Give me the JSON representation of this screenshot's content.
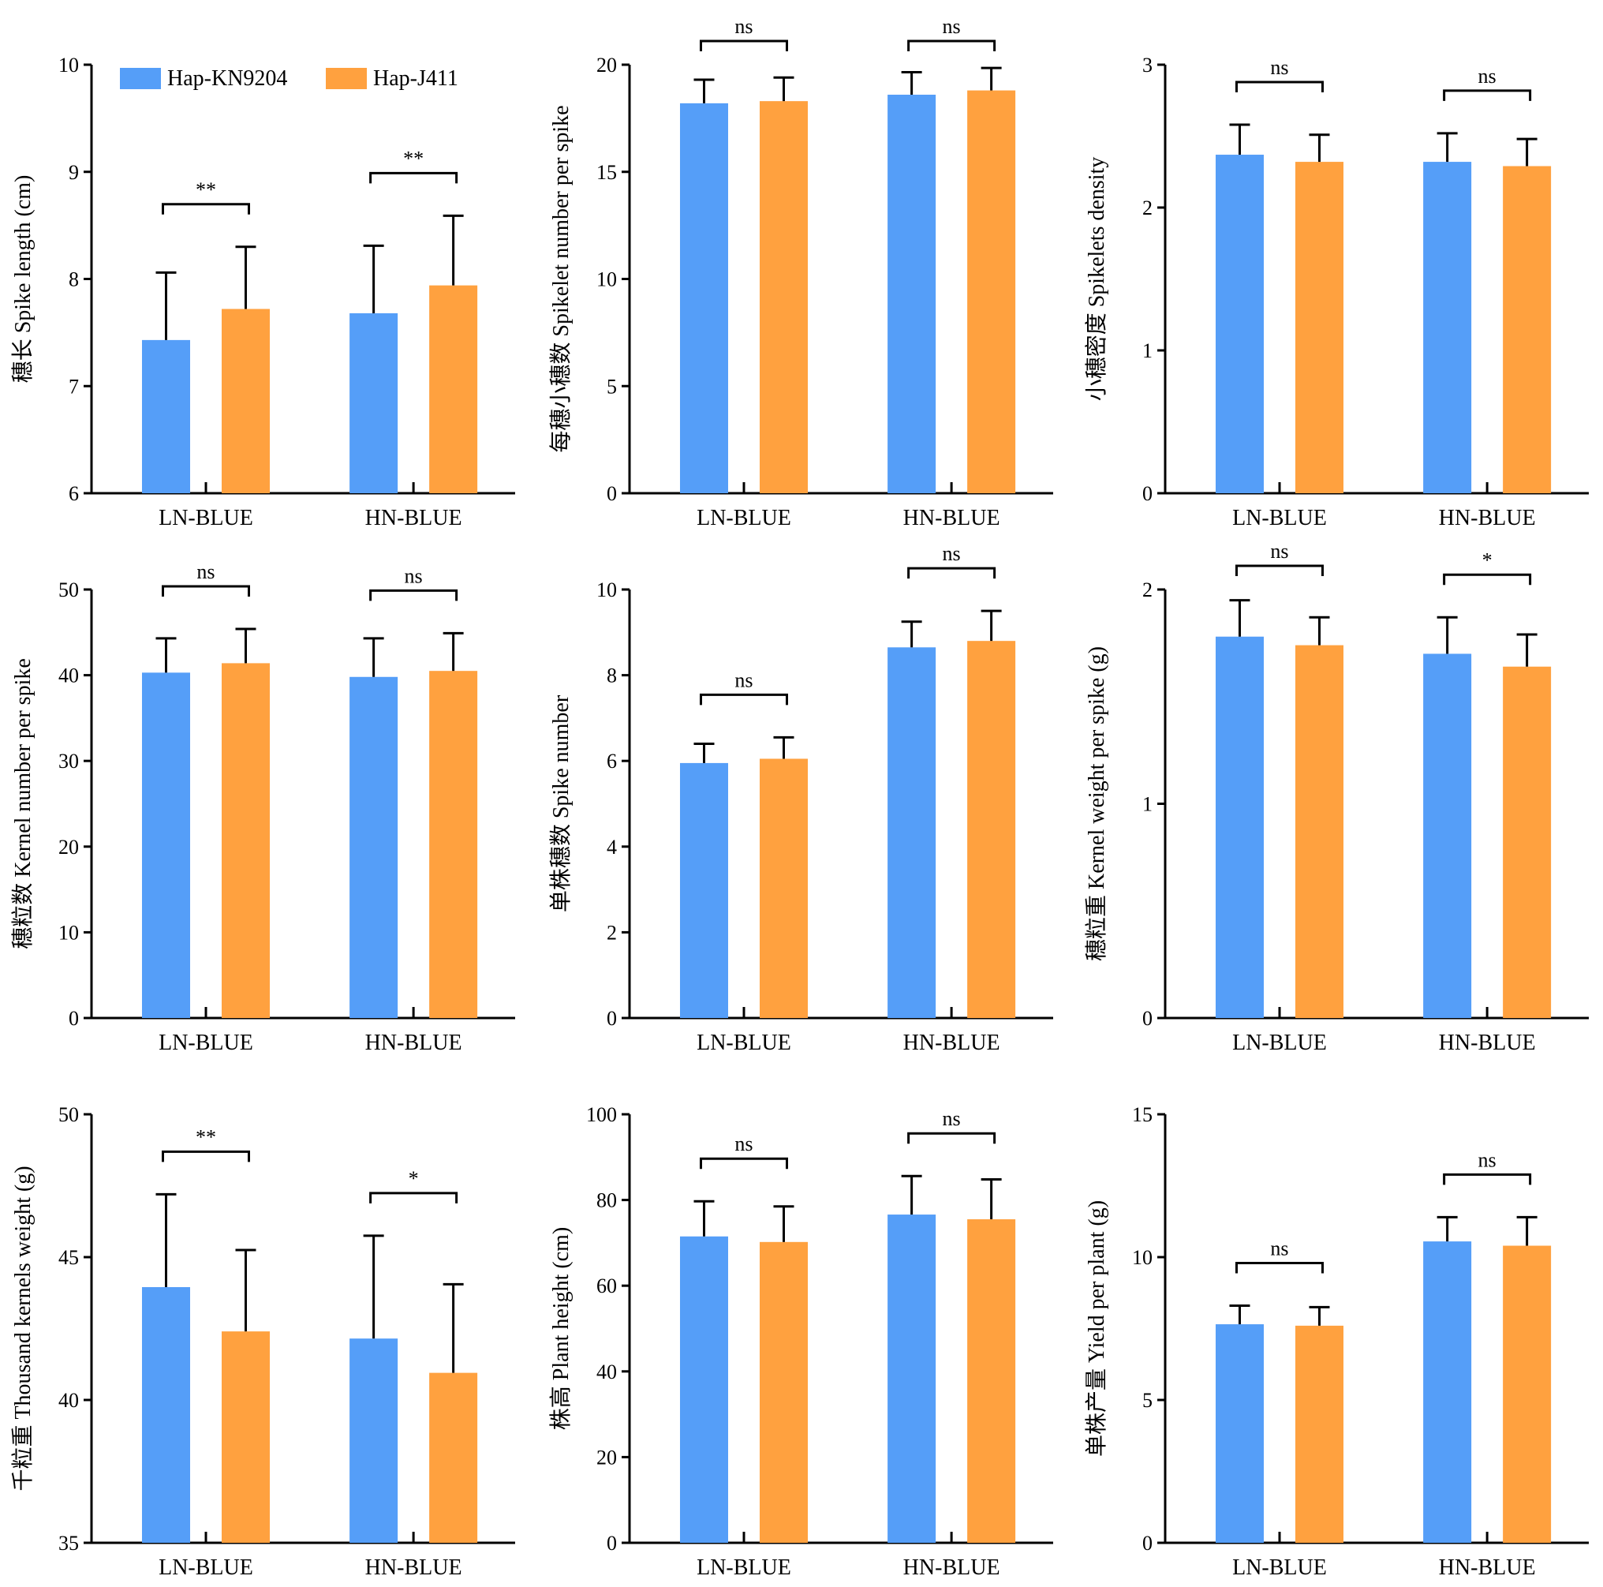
{
  "colors": {
    "series_1": "#559ef8",
    "series_2": "#ffa13f"
  },
  "legend": {
    "placement": "top-left of first panel"
  },
  "chart_data": [
    {
      "type": "bar",
      "ylabel": "穗长 Spike length (cm)",
      "ylim": [
        6,
        10
      ],
      "yticks": [
        "6",
        "7",
        "8",
        "9",
        "10"
      ],
      "categories": [
        "LN-BLUE",
        "HN-BLUE"
      ],
      "series": [
        {
          "name": "Hap-KN9204",
          "values": [
            7.43,
            7.68
          ],
          "errors": [
            0.63,
            0.63
          ]
        },
        {
          "name": "Hap-J411",
          "values": [
            7.72,
            7.94
          ],
          "errors": [
            0.58,
            0.65
          ]
        }
      ],
      "significance": [
        "**",
        "**"
      ]
    },
    {
      "type": "bar",
      "ylabel": "每穗小穗数 Spikelet number per spike",
      "ylim": [
        0,
        20
      ],
      "yticks": [
        "0",
        "5",
        "10",
        "15",
        "20"
      ],
      "categories": [
        "LN-BLUE",
        "HN-BLUE"
      ],
      "series": [
        {
          "name": "Hap-KN9204",
          "values": [
            18.2,
            18.6
          ],
          "errors": [
            1.1,
            1.05
          ]
        },
        {
          "name": "Hap-J411",
          "values": [
            18.3,
            18.8
          ],
          "errors": [
            1.1,
            1.05
          ]
        }
      ],
      "significance": [
        "ns",
        "ns"
      ]
    },
    {
      "type": "bar",
      "ylabel": "小穗密度 Spikelets density",
      "ylim": [
        0,
        3
      ],
      "yticks": [
        "0",
        "1",
        "2",
        "3"
      ],
      "categories": [
        "LN-BLUE",
        "HN-BLUE"
      ],
      "series": [
        {
          "name": "Hap-KN9204",
          "values": [
            2.37,
            2.32
          ],
          "errors": [
            0.21,
            0.2
          ]
        },
        {
          "name": "Hap-J411",
          "values": [
            2.32,
            2.29
          ],
          "errors": [
            0.19,
            0.19
          ]
        }
      ],
      "significance": [
        "ns",
        "ns"
      ]
    },
    {
      "type": "bar",
      "ylabel": "穗粒数 Kernel number per spike",
      "ylim": [
        0,
        50
      ],
      "yticks": [
        "0",
        "10",
        "20",
        "30",
        "40",
        "50"
      ],
      "categories": [
        "LN-BLUE",
        "HN-BLUE"
      ],
      "series": [
        {
          "name": "Hap-KN9204",
          "values": [
            40.3,
            39.8
          ],
          "errors": [
            4.0,
            4.5
          ]
        },
        {
          "name": "Hap-J411",
          "values": [
            41.4,
            40.5
          ],
          "errors": [
            4.0,
            4.4
          ]
        }
      ],
      "significance": [
        "ns",
        "ns"
      ]
    },
    {
      "type": "bar",
      "ylabel": "单株穗数 Spike number",
      "ylim": [
        0,
        10
      ],
      "yticks": [
        "0",
        "2",
        "4",
        "6",
        "8",
        "10"
      ],
      "categories": [
        "LN-BLUE",
        "HN-BLUE"
      ],
      "series": [
        {
          "name": "Hap-KN9204",
          "values": [
            5.95,
            8.65
          ],
          "errors": [
            0.45,
            0.6
          ]
        },
        {
          "name": "Hap-J411",
          "values": [
            6.05,
            8.8
          ],
          "errors": [
            0.5,
            0.7
          ]
        }
      ],
      "significance": [
        "ns",
        "ns"
      ]
    },
    {
      "type": "bar",
      "ylabel": "穗粒重 Kernel weight per spike (g)",
      "ylim": [
        0,
        2
      ],
      "yticks": [
        "0",
        "1",
        "2"
      ],
      "categories": [
        "LN-BLUE",
        "HN-BLUE"
      ],
      "series": [
        {
          "name": "Hap-KN9204",
          "values": [
            1.78,
            1.7
          ],
          "errors": [
            0.17,
            0.17
          ]
        },
        {
          "name": "Hap-J411",
          "values": [
            1.74,
            1.64
          ],
          "errors": [
            0.13,
            0.15
          ]
        }
      ],
      "significance": [
        "ns",
        "*"
      ]
    },
    {
      "type": "bar",
      "ylabel": "千粒重 Thousand kernels weight (g)",
      "ylim": [
        35,
        50
      ],
      "yticks": [
        "35",
        "40",
        "45",
        "50"
      ],
      "categories": [
        "LN-BLUE",
        "HN-BLUE"
      ],
      "series": [
        {
          "name": "Hap-KN9204",
          "values": [
            43.95,
            42.15
          ],
          "errors": [
            3.25,
            3.6
          ]
        },
        {
          "name": "Hap-J411",
          "values": [
            42.4,
            40.95
          ],
          "errors": [
            2.85,
            3.1
          ]
        }
      ],
      "significance": [
        "**",
        "*"
      ]
    },
    {
      "type": "bar",
      "ylabel": "株高 Plant height (cm)",
      "ylim": [
        0,
        100
      ],
      "yticks": [
        "0",
        "20",
        "40",
        "60",
        "80",
        "100"
      ],
      "categories": [
        "LN-BLUE",
        "HN-BLUE"
      ],
      "series": [
        {
          "name": "Hap-KN9204",
          "values": [
            71.5,
            76.6
          ],
          "errors": [
            8.2,
            9.0
          ]
        },
        {
          "name": "Hap-J411",
          "values": [
            70.2,
            75.5
          ],
          "errors": [
            8.3,
            9.3
          ]
        }
      ],
      "significance": [
        "ns",
        "ns"
      ]
    },
    {
      "type": "bar",
      "ylabel": "单株产量 Yield per plant (g)",
      "ylim": [
        0,
        15
      ],
      "yticks": [
        "0",
        "5",
        "10",
        "15"
      ],
      "categories": [
        "LN-BLUE",
        "HN-BLUE"
      ],
      "series": [
        {
          "name": "Hap-KN9204",
          "values": [
            7.65,
            10.55
          ],
          "errors": [
            0.65,
            0.85
          ]
        },
        {
          "name": "Hap-J411",
          "values": [
            7.6,
            10.4
          ],
          "errors": [
            0.65,
            1.0
          ]
        }
      ],
      "significance": [
        "ns",
        "ns"
      ]
    }
  ]
}
